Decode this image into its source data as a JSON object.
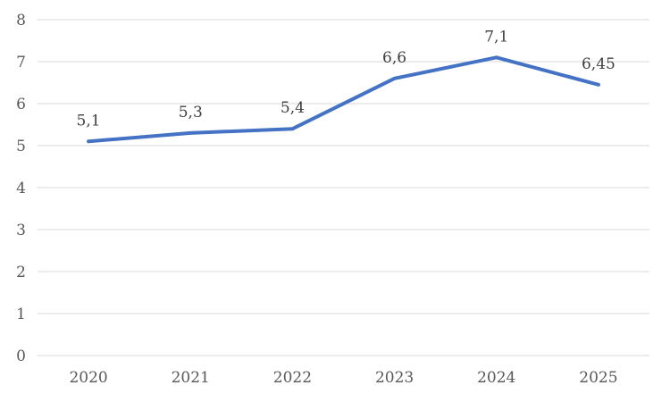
{
  "chart_data": {
    "type": "line",
    "title": "",
    "xlabel": "",
    "ylabel": "",
    "categories": [
      "2020",
      "2021",
      "2022",
      "2023",
      "2024",
      "2025"
    ],
    "series": [
      {
        "name": "",
        "values": [
          5.1,
          5.3,
          5.4,
          6.6,
          7.1,
          6.45
        ],
        "data_labels": [
          "5,1",
          "5,3",
          "5,4",
          "6,6",
          "7,1",
          "6,45"
        ],
        "color": "#4472C4",
        "line_width": 4
      }
    ],
    "ylim": [
      0,
      8
    ],
    "ytick_step": 1,
    "yticks": [
      "0",
      "1",
      "2",
      "3",
      "4",
      "5",
      "6",
      "7",
      "8"
    ],
    "grid": true,
    "legend_position": "none",
    "colors": {
      "gridline": "#D9D9D9",
      "axis_tick_label": "#595959",
      "data_label": "#404040",
      "background": "#FFFFFF"
    }
  }
}
